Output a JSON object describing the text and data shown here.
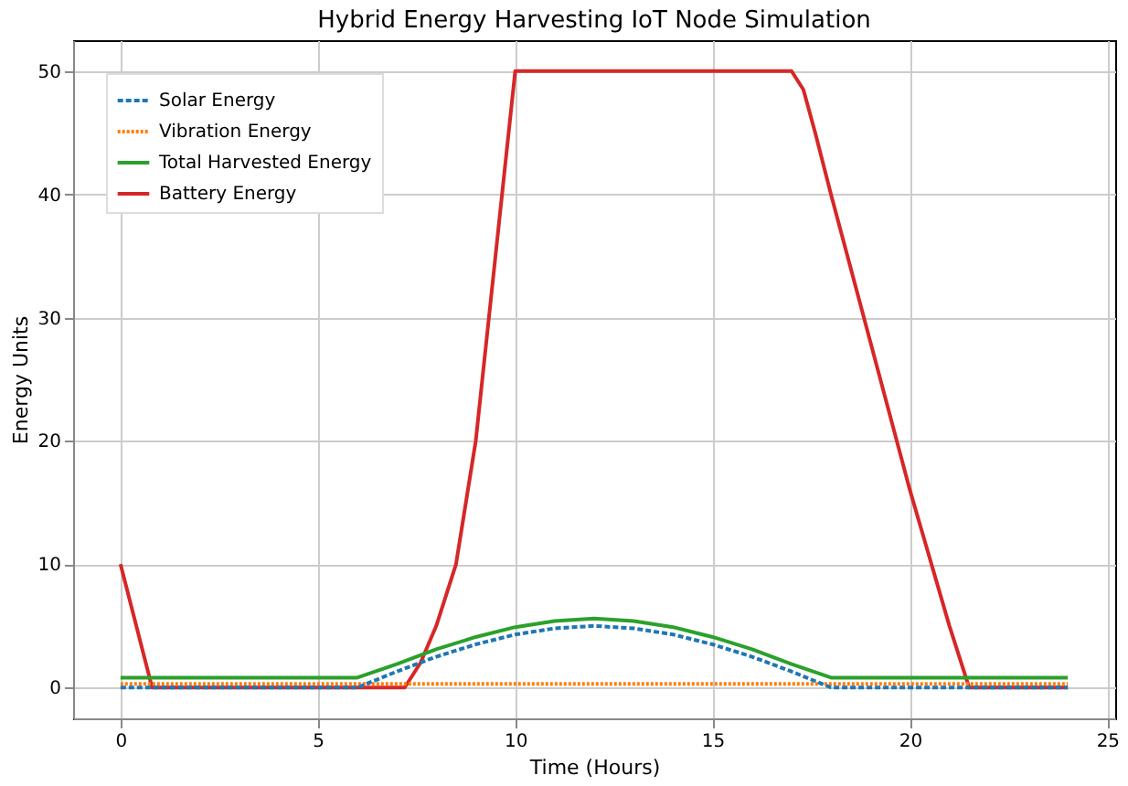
{
  "chart_data": {
    "type": "line",
    "title": "Hybrid Energy Harvesting IoT Node Simulation",
    "xlabel": "Time (Hours)",
    "ylabel": "Energy Units",
    "xlim": [
      -1.2,
      25.2
    ],
    "xticks": [
      0,
      5,
      10,
      15,
      20,
      25
    ],
    "ylim": [
      -2.5,
      52.5
    ],
    "yticks": [
      0,
      10,
      20,
      30,
      40,
      50
    ],
    "grid": true,
    "legend": "top left",
    "marker": "none",
    "series": [
      {
        "name": "Solar Energy",
        "color": "#1f77b4",
        "line_style": "dashed",
        "x": [
          0,
          6,
          7,
          8,
          9,
          10,
          11,
          12,
          13,
          14,
          15,
          16,
          17,
          18,
          24
        ],
        "values": [
          0,
          0,
          1.3,
          2.5,
          3.5,
          4.3,
          4.8,
          5,
          4.8,
          4.3,
          3.5,
          2.5,
          1.3,
          0,
          0
        ]
      },
      {
        "name": "Vibration Energy",
        "color": "#ff7f0e",
        "line_style": "dotted",
        "x": [
          0,
          24
        ],
        "values": [
          0.3,
          0.3
        ]
      },
      {
        "name": "Total Harvested Energy",
        "color": "#2ca02c",
        "line_style": "solid",
        "x": [
          0,
          6,
          7,
          8,
          9,
          10,
          11,
          12,
          13,
          14,
          15,
          16,
          17,
          18,
          24
        ],
        "values": [
          0.8,
          0.8,
          1.9,
          3.1,
          4.1,
          4.9,
          5.4,
          5.6,
          5.4,
          4.9,
          4.1,
          3.1,
          1.9,
          0.8,
          0.8
        ]
      },
      {
        "name": "Battery Energy",
        "color": "#d62728",
        "line_style": "solid",
        "x": [
          0,
          0.8,
          7.2,
          7.6,
          8,
          8.5,
          9,
          9.5,
          10,
          17,
          17.3,
          17.6,
          18,
          19,
          20,
          21,
          21.5,
          24
        ],
        "values": [
          10,
          0,
          0,
          2,
          5,
          10,
          20,
          35,
          50,
          50,
          48.5,
          45,
          40,
          28,
          16,
          5,
          0,
          0
        ]
      }
    ]
  }
}
